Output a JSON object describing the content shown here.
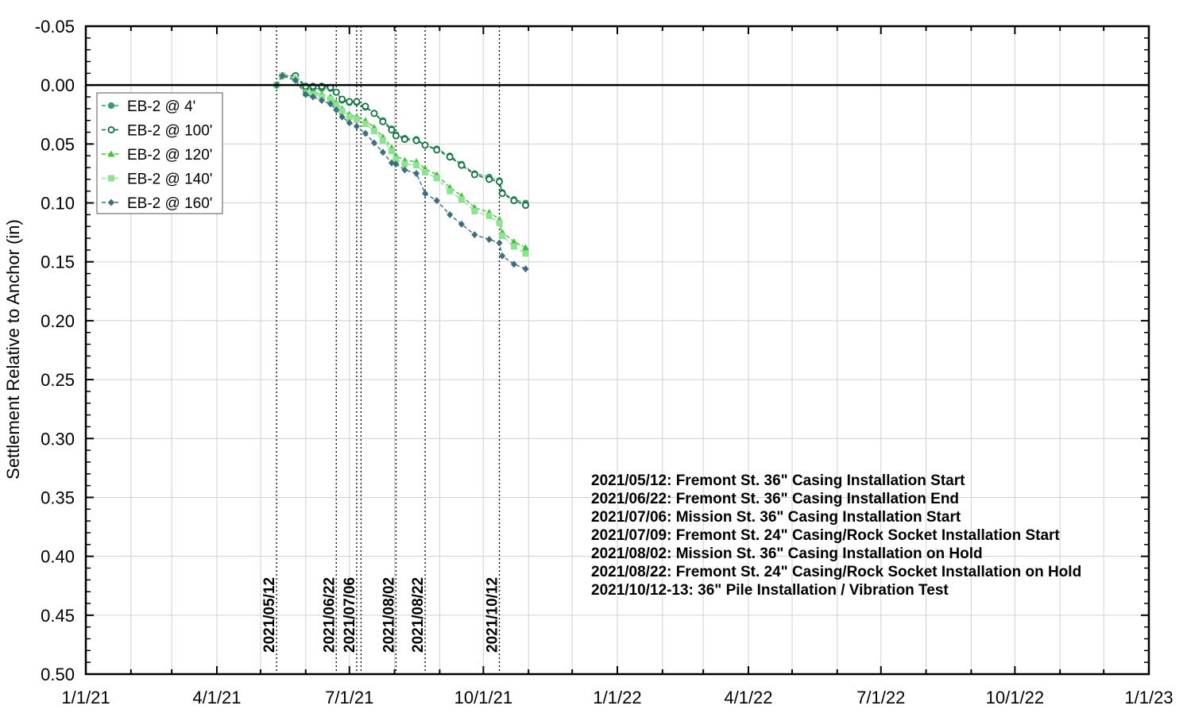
{
  "chart_data": {
    "type": "line",
    "title": "",
    "xlabel": "",
    "ylabel": "Settlement Relative to Anchor (in)",
    "x_axis": {
      "type": "date",
      "min": "2021-01-01",
      "max": "2023-01-01",
      "tick_labels": [
        "1/1/21",
        "4/1/21",
        "7/1/21",
        "10/1/21",
        "1/1/22",
        "4/1/22",
        "7/1/22",
        "10/1/22",
        "1/1/23"
      ],
      "tick_dates": [
        "2021-01-01",
        "2021-04-01",
        "2021-07-01",
        "2021-10-01",
        "2022-01-01",
        "2022-04-01",
        "2022-07-01",
        "2022-10-01",
        "2023-01-01"
      ]
    },
    "y_axis": {
      "min": -0.05,
      "max": 0.5,
      "inverted": true,
      "tick_values": [
        -0.05,
        0.0,
        0.05,
        0.1,
        0.15,
        0.2,
        0.25,
        0.3,
        0.35,
        0.4,
        0.45,
        0.5
      ],
      "tick_labels": [
        "-0.05",
        "0.00",
        "0.05",
        "0.10",
        "0.15",
        "0.20",
        "0.25",
        "0.30",
        "0.35",
        "0.40",
        "0.45",
        "0.50"
      ]
    },
    "grid": true,
    "legend_position": "top-left",
    "series": [
      {
        "name": "EB-2 @ 4'",
        "color": "#2e9e68",
        "marker": "circle",
        "x": [
          "2021-05-12",
          "2021-05-16",
          "2021-05-25",
          "2021-06-01",
          "2021-06-06",
          "2021-06-12",
          "2021-06-18",
          "2021-06-22",
          "2021-06-26",
          "2021-07-01",
          "2021-07-06",
          "2021-07-12",
          "2021-07-18",
          "2021-07-24",
          "2021-07-30",
          "2021-08-02",
          "2021-08-08",
          "2021-08-16",
          "2021-08-22",
          "2021-08-30",
          "2021-09-08",
          "2021-09-16",
          "2021-09-25",
          "2021-10-05",
          "2021-10-12",
          "2021-10-14",
          "2021-10-22",
          "2021-10-30"
        ],
        "y": [
          0.0,
          -0.008,
          -0.008,
          0.003,
          0.003,
          0.003,
          0.003,
          0.006,
          0.013,
          0.015,
          0.015,
          0.019,
          0.024,
          0.03,
          0.037,
          0.042,
          0.045,
          0.046,
          0.051,
          0.054,
          0.06,
          0.067,
          0.075,
          0.078,
          0.081,
          0.091,
          0.097,
          0.1
        ]
      },
      {
        "name": "EB-2 @ 100'",
        "color": "#0f6e3c",
        "marker": "circle-open",
        "x": [
          "2021-05-12",
          "2021-05-16",
          "2021-05-25",
          "2021-06-01",
          "2021-06-06",
          "2021-06-12",
          "2021-06-18",
          "2021-06-22",
          "2021-06-26",
          "2021-07-01",
          "2021-07-06",
          "2021-07-12",
          "2021-07-18",
          "2021-07-24",
          "2021-07-30",
          "2021-08-02",
          "2021-08-08",
          "2021-08-16",
          "2021-08-22",
          "2021-08-30",
          "2021-09-08",
          "2021-09-16",
          "2021-09-25",
          "2021-10-05",
          "2021-10-12",
          "2021-10-14",
          "2021-10-22",
          "2021-10-30"
        ],
        "y": [
          0.0,
          -0.008,
          -0.008,
          0.001,
          0.001,
          0.001,
          0.002,
          0.006,
          0.012,
          0.014,
          0.014,
          0.018,
          0.024,
          0.031,
          0.038,
          0.043,
          0.046,
          0.047,
          0.051,
          0.055,
          0.061,
          0.068,
          0.076,
          0.08,
          0.082,
          0.092,
          0.098,
          0.102
        ]
      },
      {
        "name": "EB-2 @ 120'",
        "color": "#3bc43b",
        "marker": "triangle",
        "x": [
          "2021-05-12",
          "2021-05-16",
          "2021-05-25",
          "2021-06-01",
          "2021-06-06",
          "2021-06-12",
          "2021-06-18",
          "2021-06-22",
          "2021-06-26",
          "2021-07-01",
          "2021-07-06",
          "2021-07-12",
          "2021-07-18",
          "2021-07-24",
          "2021-07-30",
          "2021-08-02",
          "2021-08-08",
          "2021-08-16",
          "2021-08-22",
          "2021-08-30",
          "2021-09-08",
          "2021-09-16",
          "2021-09-25",
          "2021-10-05",
          "2021-10-12",
          "2021-10-14",
          "2021-10-22",
          "2021-10-30"
        ],
        "y": [
          0.0,
          -0.008,
          -0.006,
          0.005,
          0.006,
          0.008,
          0.01,
          0.015,
          0.02,
          0.025,
          0.027,
          0.03,
          0.036,
          0.044,
          0.053,
          0.06,
          0.064,
          0.065,
          0.071,
          0.076,
          0.087,
          0.094,
          0.104,
          0.108,
          0.114,
          0.125,
          0.133,
          0.138
        ]
      },
      {
        "name": "EB-2 @ 140'",
        "color": "#8fe28f",
        "marker": "square",
        "x": [
          "2021-05-12",
          "2021-05-16",
          "2021-05-25",
          "2021-06-01",
          "2021-06-06",
          "2021-06-12",
          "2021-06-18",
          "2021-06-22",
          "2021-06-26",
          "2021-07-01",
          "2021-07-06",
          "2021-07-12",
          "2021-07-18",
          "2021-07-24",
          "2021-07-30",
          "2021-08-02",
          "2021-08-08",
          "2021-08-16",
          "2021-08-22",
          "2021-08-30",
          "2021-09-08",
          "2021-09-16",
          "2021-09-25",
          "2021-10-05",
          "2021-10-12",
          "2021-10-14",
          "2021-10-22",
          "2021-10-30"
        ],
        "y": [
          0.0,
          -0.008,
          -0.005,
          0.007,
          0.008,
          0.01,
          0.012,
          0.017,
          0.022,
          0.027,
          0.029,
          0.033,
          0.039,
          0.047,
          0.056,
          0.063,
          0.067,
          0.068,
          0.074,
          0.079,
          0.09,
          0.097,
          0.107,
          0.111,
          0.117,
          0.128,
          0.137,
          0.143
        ]
      },
      {
        "name": "EB-2 @ 160'",
        "color": "#3b6e7e",
        "marker": "diamond",
        "x": [
          "2021-05-12",
          "2021-05-16",
          "2021-05-25",
          "2021-06-01",
          "2021-06-06",
          "2021-06-12",
          "2021-06-18",
          "2021-06-22",
          "2021-06-26",
          "2021-07-01",
          "2021-07-06",
          "2021-07-12",
          "2021-07-18",
          "2021-07-24",
          "2021-07-30",
          "2021-08-02",
          "2021-08-08",
          "2021-08-16",
          "2021-08-22",
          "2021-08-30",
          "2021-09-08",
          "2021-09-16",
          "2021-09-25",
          "2021-10-05",
          "2021-10-12",
          "2021-10-14",
          "2021-10-22",
          "2021-10-30"
        ],
        "y": [
          0.0,
          -0.008,
          -0.004,
          0.008,
          0.01,
          0.013,
          0.016,
          0.021,
          0.027,
          0.032,
          0.035,
          0.041,
          0.049,
          0.057,
          0.066,
          0.067,
          0.072,
          0.075,
          0.092,
          0.098,
          0.11,
          0.118,
          0.127,
          0.131,
          0.134,
          0.145,
          0.152,
          0.156
        ]
      }
    ],
    "event_lines": [
      {
        "date": "2021-05-12",
        "label": "2021/05/12"
      },
      {
        "date": "2021-06-22",
        "label": "2021/06/22"
      },
      {
        "date": "2021-07-06",
        "label": "2021/07/06"
      },
      {
        "date": "2021-07-09",
        "label": ""
      },
      {
        "date": "2021-08-02",
        "label": "2021/08/02"
      },
      {
        "date": "2021-08-22",
        "label": "2021/08/22"
      },
      {
        "date": "2021-10-12",
        "label": "2021/10/12"
      }
    ],
    "annotations": [
      "2021/05/12: Fremont St. 36\" Casing Installation Start",
      "2021/06/22: Fremont St. 36\" Casing Installation End",
      "2021/07/06: Mission St.  36\" Casing Installation Start",
      "2021/07/09: Fremont St. 24\" Casing/Rock Socket Installation Start",
      "2021/08/02: Mission St.  36\" Casing Installation on Hold",
      "2021/08/22: Fremont St. 24\" Casing/Rock Socket Installation on Hold",
      "2021/10/12-13: 36\" Pile Installation / Vibration Test"
    ]
  }
}
